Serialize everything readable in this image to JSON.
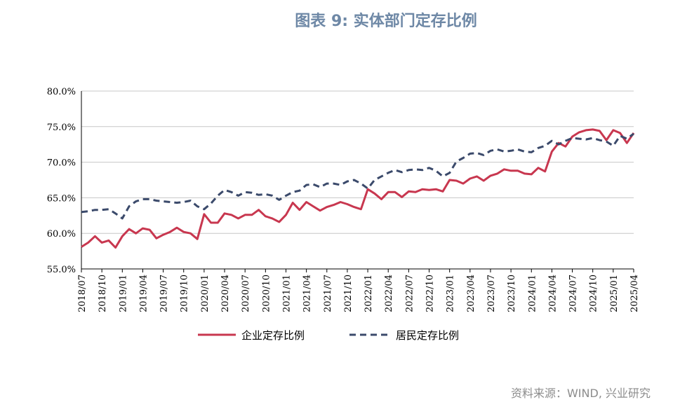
{
  "title": "图表  9: 实体部门定存比例",
  "source": "资料来源：WIND, 兴业研究",
  "colors": {
    "corporate": "#c8374f",
    "household": "#3b4a6b",
    "grid": "#c7c7c7",
    "title": "#6e88a6"
  },
  "chart_data": {
    "type": "line",
    "title": "图表  9: 实体部门定存比例",
    "ylim": [
      55,
      80
    ],
    "yticks": [
      "55.0%",
      "60.0%",
      "65.0%",
      "70.0%",
      "75.0%",
      "80.0%"
    ],
    "ytick_values": [
      55,
      60,
      65,
      70,
      75,
      80
    ],
    "xtick_labels": [
      "2018/07",
      "2018/10",
      "2019/01",
      "2019/04",
      "2019/07",
      "2019/10",
      "2020/01",
      "2020/04",
      "2020/07",
      "2020/10",
      "2021/01",
      "2021/04",
      "2021/07",
      "2021/10",
      "2022/01",
      "2022/04",
      "2022/07",
      "2022/10",
      "2023/01",
      "2023/04",
      "2023/07",
      "2023/10",
      "2024/01",
      "2024/04",
      "2024/07",
      "2024/10",
      "2025/01",
      "2025/04"
    ],
    "grid": true,
    "legend_position": "bottom",
    "start_month": "2018/07",
    "series": [
      {
        "name": "企业定存比例",
        "style": "solid",
        "values": [
          58.1,
          58.7,
          59.6,
          58.7,
          59.0,
          58.0,
          59.6,
          60.6,
          60.0,
          60.7,
          60.5,
          59.3,
          59.8,
          60.2,
          60.8,
          60.2,
          60.0,
          59.2,
          62.7,
          61.5,
          61.5,
          62.8,
          62.6,
          62.1,
          62.6,
          62.6,
          63.3,
          62.4,
          62.1,
          61.6,
          62.6,
          64.3,
          63.3,
          64.4,
          63.8,
          63.2,
          63.7,
          64.0,
          64.4,
          64.1,
          63.7,
          63.4,
          66.2,
          65.6,
          64.8,
          65.8,
          65.8,
          65.1,
          65.9,
          65.8,
          66.2,
          66.1,
          66.2,
          65.9,
          67.5,
          67.4,
          67.0,
          67.7,
          68.0,
          67.4,
          68.1,
          68.4,
          69.0,
          68.8,
          68.8,
          68.4,
          68.3,
          69.2,
          68.7,
          71.5,
          72.7,
          72.2,
          73.6,
          74.2,
          74.5,
          74.6,
          74.4,
          73.1,
          74.5,
          74.1,
          72.7,
          74.1
        ]
      },
      {
        "name": "居民定存比例",
        "style": "dashed",
        "values": [
          63.0,
          63.1,
          63.3,
          63.3,
          63.4,
          62.8,
          62.1,
          63.8,
          64.5,
          64.8,
          64.8,
          64.6,
          64.5,
          64.4,
          64.3,
          64.4,
          64.6,
          63.8,
          63.4,
          64.2,
          65.3,
          66.1,
          65.8,
          65.3,
          65.8,
          65.7,
          65.4,
          65.5,
          65.3,
          64.7,
          65.3,
          65.8,
          66.0,
          66.8,
          66.9,
          66.5,
          67.0,
          67.0,
          66.8,
          67.3,
          67.5,
          67.0,
          66.3,
          67.5,
          68.0,
          68.5,
          68.9,
          68.6,
          68.9,
          69.0,
          68.9,
          69.2,
          68.8,
          68.0,
          68.5,
          70.1,
          70.6,
          71.2,
          71.3,
          71.0,
          71.6,
          71.8,
          71.5,
          71.6,
          71.8,
          71.5,
          71.4,
          72.0,
          72.3,
          73.0,
          72.5,
          73.0,
          73.4,
          73.3,
          73.2,
          73.4,
          73.1,
          72.9,
          72.3,
          73.7,
          73.3,
          74.0
        ]
      }
    ]
  }
}
